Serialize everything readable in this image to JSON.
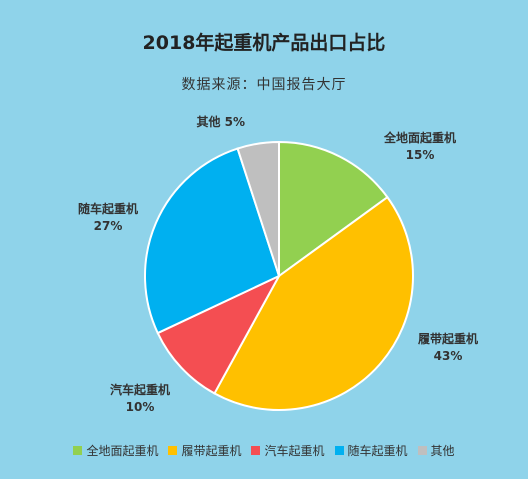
{
  "header": {
    "title": "2018年起重机产品出口占比",
    "subtitle": "数据来源：中国报告大厅"
  },
  "chart_data": {
    "type": "pie",
    "title": "2018年起重机产品出口占比",
    "subtitle": "数据来源：中国报告大厅",
    "categories": [
      "全地面起重机",
      "履带起重机",
      "汽车起重机",
      "随车起重机",
      "其他"
    ],
    "values": [
      15,
      43,
      10,
      27,
      5
    ],
    "value_labels": [
      "15%",
      "43%",
      "10%",
      "27%",
      "5%"
    ],
    "colors": [
      "#92d050",
      "#ffc000",
      "#f44e52",
      "#00b0f0",
      "#bfbfbf"
    ],
    "start_angle": "12 o'clock, clockwise",
    "legend_position": "bottom"
  }
}
